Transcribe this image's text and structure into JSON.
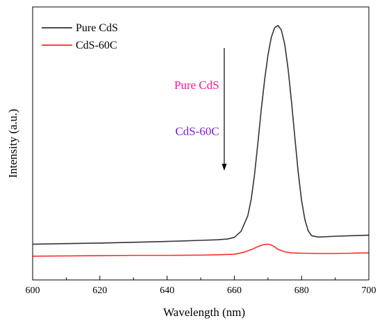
{
  "chart_data": {
    "type": "line",
    "xlabel": "Wavelength (nm)",
    "ylabel": "Intensity (a.u.)",
    "xlim": [
      600,
      700
    ],
    "ylim": [
      0,
      100
    ],
    "x_ticks": [
      600,
      620,
      640,
      660,
      680,
      700
    ],
    "y_ticks_shown": false,
    "grid": false,
    "legend_position": "top-left",
    "series": [
      {
        "name": "Pure CdS",
        "color": "#333333",
        "x": [
          600,
          610,
          620,
          630,
          640,
          650,
          655,
          658,
          660,
          662,
          664,
          665,
          666,
          667,
          668,
          669,
          670,
          671,
          672,
          673,
          674,
          675,
          676,
          677,
          678,
          679,
          680,
          681,
          682,
          683,
          685,
          690,
          695,
          700
        ],
        "y": [
          13.1,
          13.3,
          13.5,
          13.8,
          14.1,
          14.5,
          14.7,
          15.0,
          15.6,
          17.8,
          23.5,
          29.4,
          38.5,
          50.1,
          62.3,
          73.2,
          82.3,
          88.9,
          92.4,
          93.2,
          91.5,
          86.3,
          77.2,
          65.3,
          52.2,
          39.4,
          29.1,
          22.0,
          17.9,
          16.2,
          15.7,
          16.0,
          16.2,
          16.4
        ]
      },
      {
        "name": "CdS-60C",
        "color": "#ff2a2a",
        "x": [
          600,
          610,
          620,
          630,
          640,
          650,
          655,
          660,
          663,
          665,
          667,
          668,
          669,
          670,
          671,
          672,
          673,
          675,
          677,
          680,
          685,
          690,
          695,
          700
        ],
        "y": [
          8.7,
          8.8,
          8.9,
          9.0,
          9.0,
          9.1,
          9.2,
          9.4,
          10.2,
          11.1,
          12.2,
          12.7,
          13.0,
          13.1,
          12.8,
          12.1,
          11.2,
          10.3,
          9.9,
          9.8,
          9.7,
          9.7,
          9.8,
          9.9
        ]
      }
    ],
    "annotations": [
      {
        "text": "Pure CdS",
        "x": 655.5,
        "y": 70,
        "color": "#ff1493"
      },
      {
        "text": "CdS-60C",
        "x": 655.5,
        "y": 53,
        "color": "#7b1fd1"
      }
    ],
    "arrow": {
      "x": 657,
      "y_start": 85,
      "y_end": 40,
      "color": "#000000"
    }
  }
}
